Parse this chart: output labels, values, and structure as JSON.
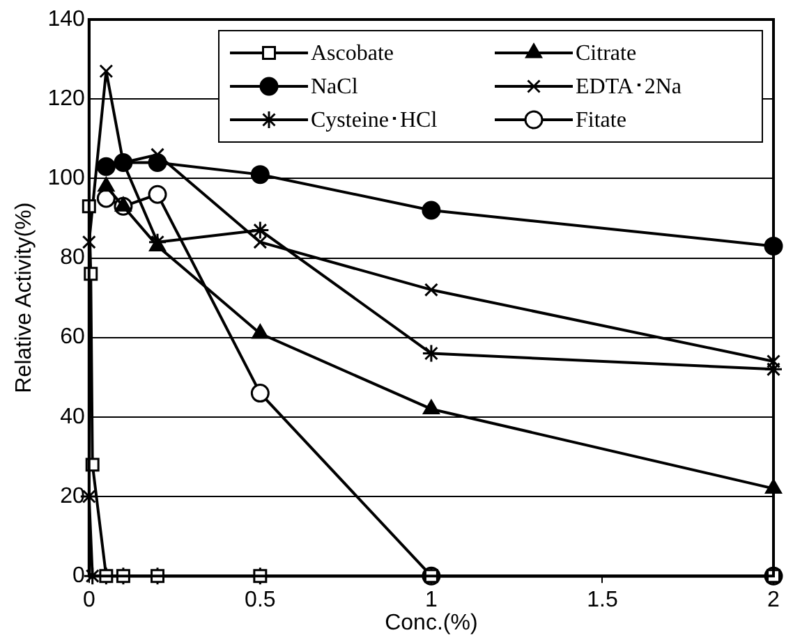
{
  "chart_data": {
    "type": "line",
    "xlabel": "Conc.(%)",
    "ylabel": "Relative Activity(%)",
    "xlim": [
      0,
      2
    ],
    "xticks": [
      0,
      0.5,
      1,
      1.5,
      2
    ],
    "ylim": [
      0,
      140
    ],
    "yticks": [
      0,
      20,
      40,
      60,
      80,
      100,
      120,
      140
    ],
    "grid": "y",
    "legend": "top right",
    "line_style": "solid",
    "series": [
      {
        "name": "Ascobate",
        "color": "#000000",
        "marker": "square",
        "colors": [
          "#ffffff",
          "#ffffff",
          "#ffffff",
          "#ffffff",
          "#ffffff",
          "#ffffff",
          "#ffffff",
          "#ffffff",
          "#ffffff"
        ],
        "x": [
          0,
          0.005,
          0.01,
          0.05,
          0.1,
          0.2,
          0.5,
          1,
          2
        ],
        "values": [
          93,
          76,
          28,
          0,
          0,
          0,
          0,
          0,
          0
        ]
      },
      {
        "name": "NaCl",
        "color": "#000000",
        "marker": "circle",
        "x": [
          0.05,
          0.1,
          0.2,
          0.5,
          1,
          2
        ],
        "values": [
          103,
          104,
          104,
          101,
          92,
          83
        ]
      },
      {
        "name": "Cysteine･HCl",
        "color": "#000000",
        "marker": "cross",
        "x": [
          0,
          0.01,
          0.05,
          0.1,
          0.2,
          0.5,
          1,
          2
        ],
        "values": [
          20,
          0,
          0,
          0,
          0,
          0,
          0,
          0
        ]
      },
      {
        "color": "#000000",
        "marker": "cross",
        "x": [
          0.05,
          0.1,
          0.2,
          0.5,
          1,
          2
        ],
        "values": [
          103,
          104,
          84,
          87,
          56,
          52
        ]
      },
      {
        "name": "Citrate",
        "color": "#000000",
        "marker": "triangle",
        "x": [
          0.05,
          0.1,
          0.2,
          0.5,
          1,
          2
        ],
        "values": [
          98,
          93,
          83,
          61,
          42,
          22
        ]
      },
      {
        "name": "EDTA･2Na",
        "color": "#000000",
        "marker": "x",
        "x": [
          0,
          0.05,
          0.1,
          0.2,
          0.5,
          1,
          2
        ],
        "values": [
          84,
          127,
          104,
          106,
          84,
          72,
          54
        ]
      },
      {
        "name": "Fitate",
        "color": "#000000",
        "marker": "circle",
        "colors": [
          "#ffffff",
          "#ffffff",
          "#ffffff",
          "#ffffff",
          "#ffffff",
          "#ffffff"
        ],
        "x": [
          0.05,
          0.1,
          0.2,
          0.5,
          1,
          2
        ],
        "values": [
          95,
          93,
          96,
          46,
          0,
          0
        ]
      }
    ]
  }
}
